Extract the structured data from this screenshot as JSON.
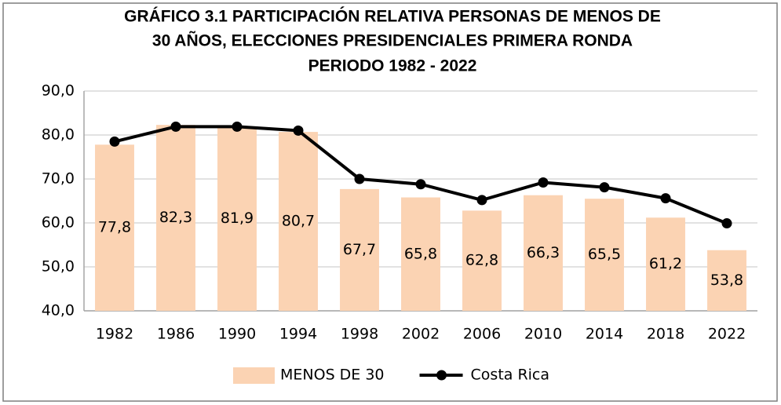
{
  "chart_data": {
    "type": "combo",
    "title": [
      "GRÁFICO 3.1 PARTICIPACIÓN RELATIVA PERSONAS DE MENOS DE",
      "30 AÑOS, ELECCIONES PRESIDENCIALES PRIMERA RONDA",
      "PERIODO 1982 - 2022"
    ],
    "categories": [
      "1982",
      "1986",
      "1990",
      "1994",
      "1998",
      "2002",
      "2006",
      "2010",
      "2014",
      "2018",
      "2022"
    ],
    "series": [
      {
        "name": "MENOS DE 30",
        "type": "bar",
        "color": "#fbd3b3",
        "values": [
          77.8,
          82.3,
          81.9,
          80.7,
          67.7,
          65.8,
          62.8,
          66.3,
          65.5,
          61.2,
          53.8
        ],
        "value_labels": [
          "77,8",
          "82,3",
          "81,9",
          "80,7",
          "67,7",
          "65,8",
          "62,8",
          "66,3",
          "65,5",
          "61,2",
          "53,8"
        ]
      },
      {
        "name": "Costa Rica",
        "type": "line",
        "color": "#000000",
        "values": [
          78.5,
          81.9,
          81.9,
          81.0,
          70.0,
          68.8,
          65.2,
          69.2,
          68.1,
          65.6,
          59.9
        ]
      }
    ],
    "ylim": [
      40,
      90
    ],
    "yticks": [
      {
        "value": 40,
        "label": "40,0"
      },
      {
        "value": 50,
        "label": "50,0"
      },
      {
        "value": 60,
        "label": "60,0"
      },
      {
        "value": 70,
        "label": "70,0"
      },
      {
        "value": 80,
        "label": "80,0"
      },
      {
        "value": 90,
        "label": "90,0"
      }
    ],
    "grid": true,
    "legend": "bottom"
  }
}
